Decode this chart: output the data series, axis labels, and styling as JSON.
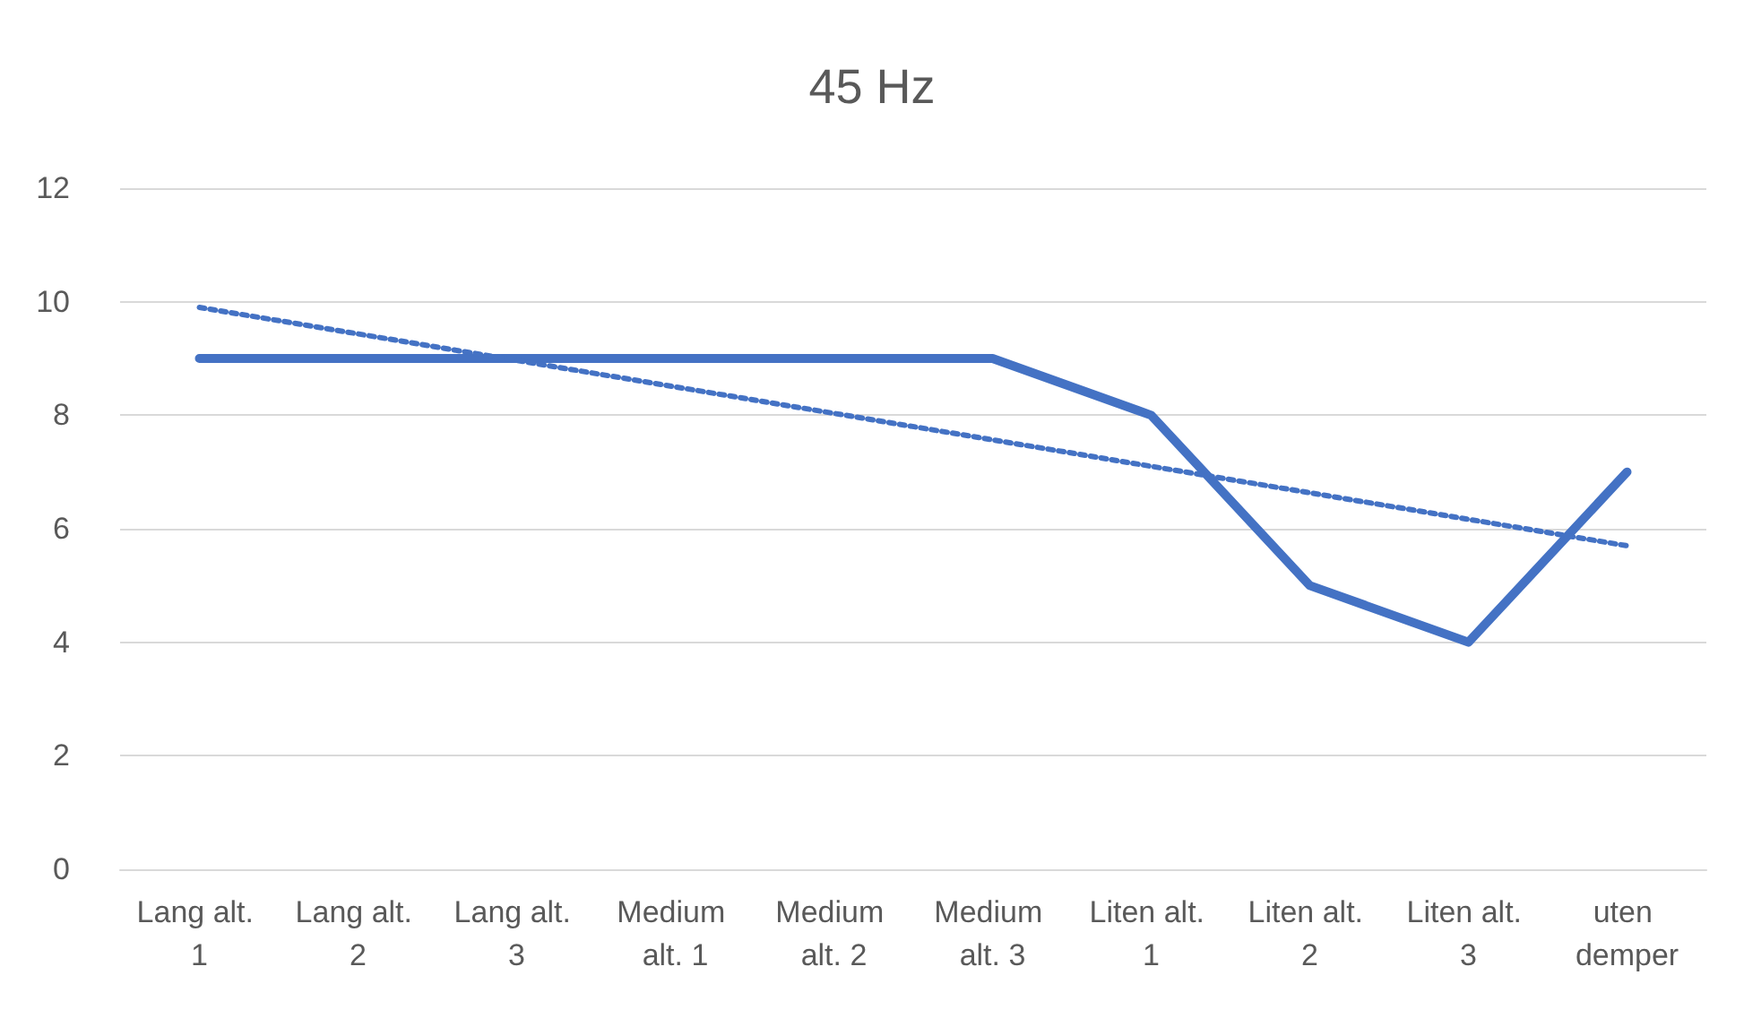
{
  "chart_data": {
    "type": "line",
    "title": "45 Hz",
    "categories": [
      "Lang alt. 1",
      "Lang alt. 2",
      "Lang alt. 3",
      "Medium alt. 1",
      "Medium alt. 2",
      "Medium alt. 3",
      "Liten alt. 1",
      "Liten alt. 2",
      "Liten alt. 3",
      "uten demper"
    ],
    "series": [
      {
        "color": "#4472c4",
        "values": [
          9,
          9,
          9,
          9,
          9,
          9,
          8,
          5,
          4,
          7
        ],
        "line_style": "solid"
      },
      {
        "type": "line",
        "color": "#4472c4",
        "x": [
          "Lang alt. 1",
          "uten demper"
        ],
        "values": [
          9.9,
          5.7
        ],
        "line_style": "dotted"
      }
    ],
    "ylim": [
      0,
      12
    ],
    "yticks": [
      0,
      2,
      4,
      6,
      8,
      10,
      12
    ],
    "grid": "y",
    "marker": "none"
  }
}
